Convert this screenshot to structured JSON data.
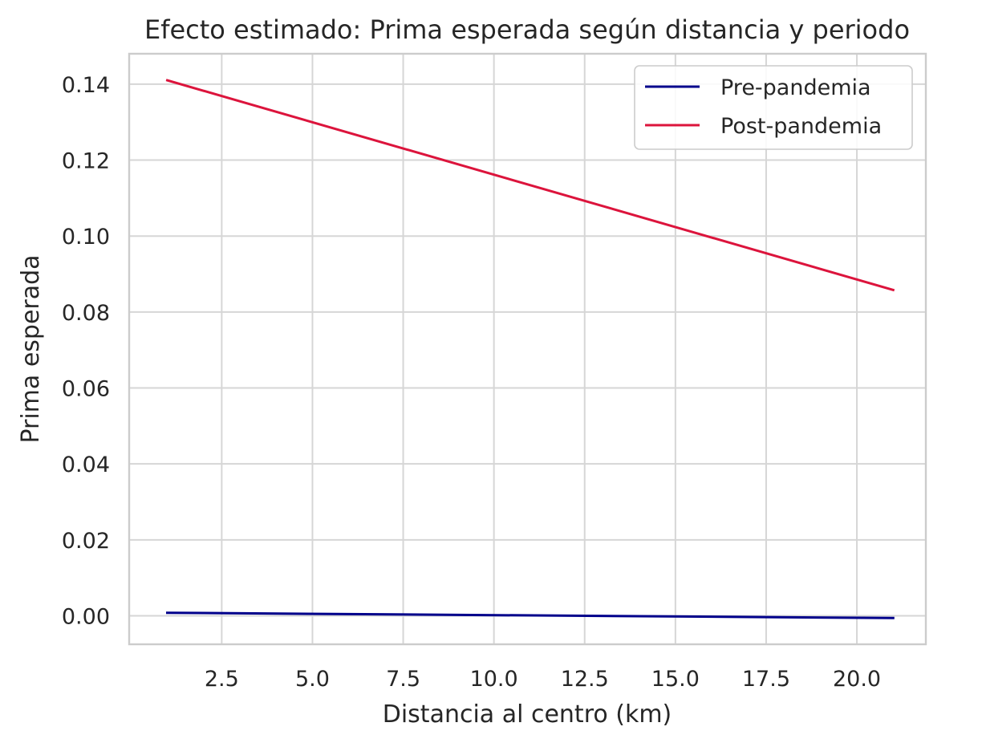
{
  "chart_data": {
    "type": "line",
    "title": "Efecto estimado: Prima esperada según distancia y periodo",
    "xlabel": "Distancia al centro (km)",
    "ylabel": "Prima esperada",
    "xlim": [
      -0.05,
      21.9
    ],
    "ylim": [
      -0.0075,
      0.148
    ],
    "xticks": [
      2.5,
      5.0,
      7.5,
      10.0,
      12.5,
      15.0,
      17.5,
      20.0
    ],
    "xtick_labels": [
      "2.5",
      "5.0",
      "7.5",
      "10.0",
      "12.5",
      "15.0",
      "17.5",
      "20.0"
    ],
    "yticks": [
      0.0,
      0.02,
      0.04,
      0.06,
      0.08,
      0.1,
      0.12,
      0.14
    ],
    "ytick_labels": [
      "0.00",
      "0.02",
      "0.04",
      "0.06",
      "0.08",
      "0.10",
      "0.12",
      "0.14"
    ],
    "grid": true,
    "legend_position": "top-right",
    "series": [
      {
        "name": "Pre-pandemia",
        "color": "#00008b",
        "x": [
          1.0,
          21.0
        ],
        "y": [
          0.0008,
          -0.0006
        ]
      },
      {
        "name": "Post-pandemia",
        "color": "#dc143c",
        "x": [
          1.0,
          21.0
        ],
        "y": [
          0.141,
          0.0858
        ]
      }
    ]
  }
}
